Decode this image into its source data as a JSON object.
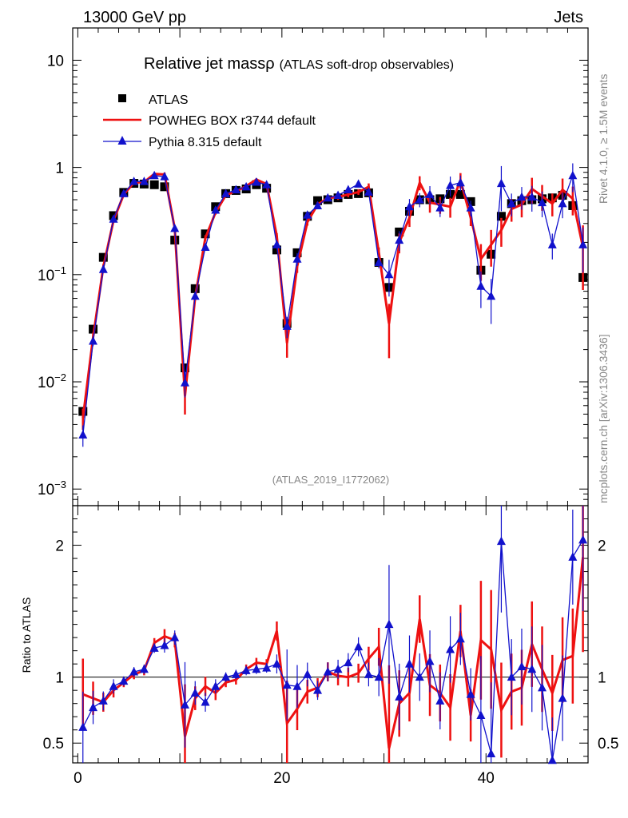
{
  "header": {
    "left": "13000 GeV pp",
    "right": "Jets"
  },
  "side": {
    "rivet": "Rivet 4.1.0, ≥ 1.5M events",
    "mcplots": "mcplots.cern.ch [arXiv:1306.3436]"
  },
  "chart_data": {
    "type": "scatter",
    "title": "Relative jet mass",
    "title_symbol": "ρ",
    "subtitle": "(ATLAS soft-drop observables)",
    "watermark": "(ATLAS_2019_I1772062)",
    "xlim": [
      -0.5,
      50
    ],
    "x_ticks": [
      "0",
      "20",
      "40"
    ],
    "main_y_scale": "log",
    "main_ylim": [
      0.0007,
      20
    ],
    "main_y_ticks": [
      {
        "value": 10,
        "base": "10",
        "exp": ""
      },
      {
        "value": 1,
        "base": "1",
        "exp": ""
      },
      {
        "value": 0.1,
        "base": "10",
        "exp": "−1"
      },
      {
        "value": 0.01,
        "base": "10",
        "exp": "−2"
      },
      {
        "value": 0.001,
        "base": "10",
        "exp": "−3"
      }
    ],
    "ratio_ylabel": "Ratio to ATLAS",
    "ratio_ylim": [
      0.35,
      2.3
    ],
    "ratio_y_ticks": [
      "0.5",
      "1",
      "2"
    ],
    "legend": [
      {
        "name": "ATLAS",
        "color": "#000000",
        "marker": "square"
      },
      {
        "name": "POWHEG BOX r3744 default",
        "color": "#ee1111",
        "marker": "line"
      },
      {
        "name": "Pythia 8.315 default",
        "color": "#1111cc",
        "marker": "triangle"
      }
    ],
    "x": [
      0.5,
      1.5,
      2.5,
      3.5,
      4.5,
      5.5,
      6.5,
      7.5,
      8.5,
      9.5,
      10.5,
      11.5,
      12.5,
      13.5,
      14.5,
      15.5,
      16.5,
      17.5,
      18.5,
      19.5,
      20.5,
      21.5,
      22.5,
      23.5,
      24.5,
      25.5,
      26.5,
      27.5,
      28.5,
      29.5,
      30.5,
      31.5,
      32.5,
      33.5,
      34.5,
      35.5,
      36.5,
      37.5,
      38.5,
      39.5,
      40.5,
      41.5,
      42.5,
      43.5,
      44.5,
      45.5,
      46.5,
      47.5,
      48.5,
      49.5
    ],
    "series": [
      {
        "name": "ATLAS",
        "color": "#000000",
        "values": [
          0.0053,
          0.031,
          0.145,
          0.355,
          0.585,
          0.71,
          0.7,
          0.69,
          0.66,
          0.21,
          0.0135,
          0.074,
          0.24,
          0.43,
          0.57,
          0.61,
          0.63,
          0.69,
          0.64,
          0.17,
          0.035,
          0.16,
          0.35,
          0.49,
          0.5,
          0.52,
          0.56,
          0.57,
          0.58,
          0.13,
          0.076,
          0.25,
          0.39,
          0.5,
          0.5,
          0.51,
          0.56,
          0.56,
          0.48,
          0.11,
          0.155,
          0.35,
          0.46,
          0.49,
          0.5,
          0.51,
          0.52,
          0.55,
          0.44,
          0.094
        ],
        "ratio": [
          1,
          1,
          1,
          1,
          1,
          1,
          1,
          1,
          1,
          1,
          1,
          1,
          1,
          1,
          1,
          1,
          1,
          1,
          1,
          1,
          1,
          1,
          1,
          1,
          1,
          1,
          1,
          1,
          1,
          1,
          1,
          1,
          1,
          1,
          1,
          1,
          1,
          1,
          1,
          1,
          1,
          1,
          1,
          1,
          1,
          1,
          1,
          1,
          1,
          1
        ]
      },
      {
        "name": "POWHEG BOX r3744 default",
        "color": "#ee1111",
        "values": [
          0.0046,
          0.026,
          0.118,
          0.32,
          0.56,
          0.72,
          0.73,
          0.87,
          0.86,
          0.27,
          0.0074,
          0.062,
          0.22,
          0.38,
          0.55,
          0.6,
          0.67,
          0.77,
          0.7,
          0.23,
          0.023,
          0.12,
          0.31,
          0.45,
          0.52,
          0.53,
          0.56,
          0.59,
          0.66,
          0.16,
          0.035,
          0.2,
          0.34,
          0.72,
          0.47,
          0.45,
          0.43,
          0.76,
          0.34,
          0.14,
          0.19,
          0.26,
          0.41,
          0.45,
          0.63,
          0.54,
          0.46,
          0.62,
          0.51,
          0.18
        ],
        "ratio": [
          0.87,
          0.84,
          0.81,
          0.9,
          0.96,
          1.02,
          1.05,
          1.26,
          1.31,
          1.28,
          0.55,
          0.84,
          0.93,
          0.88,
          0.96,
          0.98,
          1.06,
          1.11,
          1.1,
          1.35,
          0.65,
          0.76,
          0.89,
          0.92,
          1.04,
          1.01,
          1.0,
          1.03,
          1.14,
          1.23,
          0.46,
          0.8,
          0.88,
          1.44,
          0.94,
          0.88,
          0.77,
          1.35,
          0.71,
          1.28,
          1.21,
          0.75,
          0.89,
          0.92,
          1.25,
          1.06,
          0.88,
          1.13,
          1.16,
          1.91
        ],
        "errors": [
          0.15,
          0.07,
          0.04,
          0.03,
          0.02,
          0.02,
          0.02,
          0.02,
          0.03,
          0.03,
          0.22,
          0.05,
          0.04,
          0.03,
          0.02,
          0.02,
          0.02,
          0.02,
          0.02,
          0.04,
          0.18,
          0.09,
          0.05,
          0.04,
          0.04,
          0.04,
          0.04,
          0.04,
          0.05,
          0.08,
          0.35,
          0.14,
          0.12,
          0.1,
          0.13,
          0.12,
          0.14,
          0.11,
          0.11,
          0.25,
          0.25,
          0.2,
          0.16,
          0.16,
          0.18,
          0.18,
          0.16,
          0.18,
          0.2,
          0.4
        ]
      },
      {
        "name": "Pythia 8.315 default",
        "color": "#1111cc",
        "values": [
          0.0032,
          0.024,
          0.112,
          0.33,
          0.57,
          0.74,
          0.74,
          0.84,
          0.82,
          0.27,
          0.0098,
          0.063,
          0.18,
          0.4,
          0.57,
          0.62,
          0.66,
          0.73,
          0.69,
          0.19,
          0.033,
          0.14,
          0.36,
          0.44,
          0.52,
          0.55,
          0.62,
          0.7,
          0.59,
          0.13,
          0.1,
          0.21,
          0.43,
          0.5,
          0.56,
          0.42,
          0.68,
          0.72,
          0.42,
          0.078,
          0.063,
          0.71,
          0.46,
          0.53,
          0.53,
          0.47,
          0.19,
          0.46,
          0.84,
          0.19
        ],
        "ratio": [
          0.62,
          0.77,
          0.82,
          0.93,
          0.97,
          1.04,
          1.06,
          1.22,
          1.24,
          1.3,
          0.79,
          0.88,
          0.81,
          0.93,
          1.0,
          1.02,
          1.05,
          1.06,
          1.07,
          1.1,
          0.94,
          0.93,
          1.02,
          0.9,
          1.04,
          1.06,
          1.11,
          1.23,
          1.02,
          1.0,
          1.4,
          0.85,
          1.1,
          1.0,
          1.12,
          0.82,
          1.21,
          1.29,
          0.87,
          0.71,
          0.42,
          2.03,
          1.0,
          1.08,
          1.06,
          0.92,
          0.37,
          0.84,
          1.91,
          2.04
        ],
        "errors": [
          0.15,
          0.07,
          0.04,
          0.03,
          0.02,
          0.02,
          0.02,
          0.02,
          0.03,
          0.03,
          0.18,
          0.05,
          0.04,
          0.03,
          0.02,
          0.02,
          0.02,
          0.02,
          0.02,
          0.04,
          0.15,
          0.09,
          0.05,
          0.04,
          0.04,
          0.04,
          0.04,
          0.04,
          0.05,
          0.08,
          0.25,
          0.14,
          0.12,
          0.1,
          0.13,
          0.12,
          0.14,
          0.11,
          0.11,
          0.25,
          0.3,
          0.3,
          0.16,
          0.16,
          0.18,
          0.18,
          0.18,
          0.18,
          0.2,
          0.3
        ]
      }
    ]
  }
}
